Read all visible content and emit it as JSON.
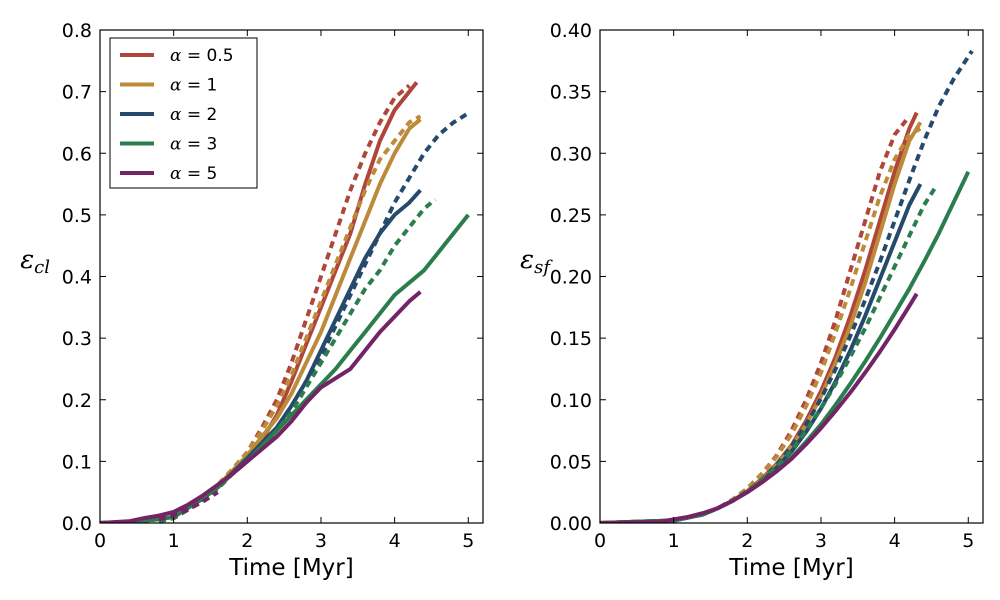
{
  "chart_data": [
    {
      "type": "line",
      "panel": "left",
      "title": "",
      "xlabel": "Time [Myr]",
      "ylabel": "εcl",
      "ylabel_symbol": "ε",
      "ylabel_sub": "cl",
      "xlim": [
        0,
        5.2
      ],
      "ylim": [
        0,
        0.8
      ],
      "xticks": [
        0,
        1,
        2,
        3,
        4,
        5
      ],
      "yticks": [
        0.0,
        0.1,
        0.2,
        0.3,
        0.4,
        0.5,
        0.6,
        0.7,
        0.8
      ],
      "ytick_labels": [
        "0.0",
        "0.1",
        "0.2",
        "0.3",
        "0.4",
        "0.5",
        "0.6",
        "0.7",
        "0.8"
      ],
      "grid": false,
      "legend": {
        "placement": "top-left",
        "entries": [
          {
            "symbol": "α",
            "text": " = 0.5",
            "color": "#b0453a"
          },
          {
            "symbol": "α",
            "text": " = 1",
            "color": "#bd8a3a"
          },
          {
            "symbol": "α",
            "text": " = 2",
            "color": "#264a6b"
          },
          {
            "symbol": "α",
            "text": " = 3",
            "color": "#2a7d4d"
          },
          {
            "symbol": "α",
            "text": " = 5",
            "color": "#732366"
          }
        ]
      },
      "series": [
        {
          "alpha": 0.5,
          "color": "#b0453a",
          "style": "solid",
          "x": [
            0,
            0.4,
            0.6,
            0.8,
            1.0,
            1.2,
            1.4,
            1.6,
            1.8,
            2.0,
            2.2,
            2.4,
            2.6,
            2.8,
            3.0,
            3.2,
            3.4,
            3.6,
            3.8,
            4.0,
            4.3
          ],
          "y": [
            0,
            0.002,
            0.004,
            0.006,
            0.01,
            0.025,
            0.04,
            0.06,
            0.08,
            0.105,
            0.135,
            0.175,
            0.23,
            0.29,
            0.35,
            0.41,
            0.47,
            0.55,
            0.62,
            0.67,
            0.715
          ]
        },
        {
          "alpha": 0.5,
          "color": "#b0453a",
          "style": "dashed",
          "x": [
            0.8,
            1.0,
            1.2,
            1.4,
            1.6,
            1.8,
            2.0,
            2.2,
            2.4,
            2.6,
            2.8,
            3.0,
            3.2,
            3.4,
            3.6,
            3.8,
            4.0,
            4.2
          ],
          "y": [
            0.003,
            0.008,
            0.022,
            0.04,
            0.06,
            0.085,
            0.115,
            0.155,
            0.2,
            0.26,
            0.33,
            0.4,
            0.47,
            0.54,
            0.6,
            0.65,
            0.69,
            0.71
          ]
        },
        {
          "alpha": 1,
          "color": "#bd8a3a",
          "style": "solid",
          "x": [
            0,
            0.4,
            0.6,
            0.8,
            1.0,
            1.2,
            1.4,
            1.6,
            1.8,
            2.0,
            2.2,
            2.4,
            2.6,
            2.8,
            3.0,
            3.2,
            3.4,
            3.6,
            3.8,
            4.0,
            4.2,
            4.35
          ],
          "y": [
            0,
            0.002,
            0.004,
            0.006,
            0.01,
            0.025,
            0.04,
            0.06,
            0.085,
            0.11,
            0.14,
            0.17,
            0.21,
            0.26,
            0.31,
            0.37,
            0.43,
            0.49,
            0.55,
            0.6,
            0.64,
            0.655
          ]
        },
        {
          "alpha": 1,
          "color": "#bd8a3a",
          "style": "dashed",
          "x": [
            0.8,
            1.0,
            1.2,
            1.4,
            1.6,
            1.8,
            2.0,
            2.2,
            2.4,
            2.6,
            2.8,
            3.0,
            3.2,
            3.4,
            3.6,
            3.8,
            4.0,
            4.2,
            4.35
          ],
          "y": [
            0.003,
            0.008,
            0.022,
            0.04,
            0.062,
            0.088,
            0.115,
            0.15,
            0.19,
            0.24,
            0.3,
            0.36,
            0.42,
            0.48,
            0.54,
            0.59,
            0.62,
            0.65,
            0.66
          ]
        },
        {
          "alpha": 2,
          "color": "#264a6b",
          "style": "solid",
          "x": [
            0,
            0.4,
            0.6,
            0.8,
            1.0,
            1.2,
            1.4,
            1.6,
            1.8,
            2.0,
            2.2,
            2.4,
            2.6,
            2.8,
            3.0,
            3.2,
            3.4,
            3.6,
            3.8,
            4.0,
            4.2,
            4.35
          ],
          "y": [
            0,
            0.002,
            0.004,
            0.006,
            0.01,
            0.025,
            0.04,
            0.058,
            0.082,
            0.105,
            0.13,
            0.155,
            0.19,
            0.23,
            0.28,
            0.33,
            0.38,
            0.43,
            0.47,
            0.5,
            0.52,
            0.54
          ]
        },
        {
          "alpha": 2,
          "color": "#264a6b",
          "style": "dashed",
          "x": [
            0.8,
            1.0,
            1.2,
            1.4,
            1.6,
            1.8,
            2.0,
            2.2,
            2.4,
            2.6,
            2.8,
            3.0,
            3.2,
            3.4,
            3.6,
            3.8,
            4.0,
            4.2,
            4.4,
            4.6,
            4.8,
            5.0
          ],
          "y": [
            0.003,
            0.008,
            0.022,
            0.038,
            0.056,
            0.08,
            0.1,
            0.125,
            0.155,
            0.19,
            0.23,
            0.27,
            0.32,
            0.37,
            0.42,
            0.47,
            0.52,
            0.56,
            0.6,
            0.63,
            0.65,
            0.665
          ]
        },
        {
          "alpha": 3,
          "color": "#2a7d4d",
          "style": "solid",
          "x": [
            0,
            0.4,
            0.6,
            0.8,
            1.0,
            1.2,
            1.4,
            1.6,
            1.8,
            2.0,
            2.2,
            2.4,
            2.6,
            2.8,
            3.0,
            3.2,
            3.4,
            3.6,
            3.8,
            4.0,
            4.2,
            4.4,
            4.6,
            4.8,
            5.0
          ],
          "y": [
            0,
            0.002,
            0.004,
            0.006,
            0.01,
            0.025,
            0.04,
            0.058,
            0.08,
            0.1,
            0.125,
            0.15,
            0.175,
            0.2,
            0.225,
            0.25,
            0.28,
            0.31,
            0.34,
            0.37,
            0.39,
            0.41,
            0.44,
            0.47,
            0.5
          ]
        },
        {
          "alpha": 3,
          "color": "#2a7d4d",
          "style": "dashed",
          "x": [
            0.8,
            1.0,
            1.2,
            1.4,
            1.6,
            1.8,
            2.0,
            2.2,
            2.4,
            2.6,
            2.8,
            3.0,
            3.2,
            3.4,
            3.6,
            3.8,
            4.0,
            4.2,
            4.4,
            4.55
          ],
          "y": [
            0.003,
            0.008,
            0.022,
            0.038,
            0.056,
            0.08,
            0.1,
            0.125,
            0.15,
            0.18,
            0.22,
            0.26,
            0.3,
            0.34,
            0.38,
            0.41,
            0.45,
            0.48,
            0.51,
            0.525
          ]
        },
        {
          "alpha": 5,
          "color": "#732366",
          "style": "solid",
          "x": [
            0,
            0.4,
            0.6,
            0.8,
            1.0,
            1.2,
            1.4,
            1.6,
            1.8,
            2.0,
            2.2,
            2.4,
            2.6,
            2.8,
            3.0,
            3.2,
            3.4,
            3.6,
            3.8,
            4.0,
            4.2,
            4.35
          ],
          "y": [
            0,
            0.003,
            0.008,
            0.012,
            0.018,
            0.03,
            0.045,
            0.062,
            0.08,
            0.1,
            0.12,
            0.14,
            0.165,
            0.195,
            0.22,
            0.235,
            0.25,
            0.28,
            0.31,
            0.335,
            0.36,
            0.375
          ]
        },
        {
          "alpha": 5,
          "color": "#732366",
          "style": "dashed",
          "x": [
            0.8,
            1.0,
            1.2,
            1.4,
            1.6
          ],
          "y": [
            0.006,
            0.012,
            0.022,
            0.035,
            0.05
          ]
        }
      ]
    },
    {
      "type": "line",
      "panel": "right",
      "title": "",
      "xlabel": "Time [Myr]",
      "ylabel": "εsf",
      "ylabel_symbol": "ε",
      "ylabel_sub": "sf",
      "xlim": [
        0,
        5.2
      ],
      "ylim": [
        0,
        0.4
      ],
      "xticks": [
        0,
        1,
        2,
        3,
        4,
        5
      ],
      "yticks": [
        0.0,
        0.05,
        0.1,
        0.15,
        0.2,
        0.25,
        0.3,
        0.35,
        0.4
      ],
      "ytick_labels": [
        "0.00",
        "0.05",
        "0.10",
        "0.15",
        "0.20",
        "0.25",
        "0.30",
        "0.35",
        "0.40"
      ],
      "grid": false,
      "series": [
        {
          "alpha": 0.5,
          "color": "#b0453a",
          "style": "solid",
          "x": [
            0,
            1.0,
            1.4,
            1.6,
            1.8,
            2.0,
            2.2,
            2.4,
            2.6,
            2.8,
            3.0,
            3.2,
            3.4,
            3.6,
            3.8,
            4.0,
            4.2,
            4.3
          ],
          "y": [
            0,
            0.002,
            0.007,
            0.012,
            0.018,
            0.026,
            0.036,
            0.048,
            0.063,
            0.083,
            0.107,
            0.135,
            0.168,
            0.205,
            0.245,
            0.285,
            0.32,
            0.333
          ]
        },
        {
          "alpha": 0.5,
          "color": "#b0453a",
          "style": "dashed",
          "x": [
            1.0,
            1.4,
            1.6,
            1.8,
            2.0,
            2.2,
            2.4,
            2.6,
            2.8,
            3.0,
            3.2,
            3.4,
            3.6,
            3.8,
            4.0,
            4.2
          ],
          "y": [
            0.002,
            0.007,
            0.012,
            0.019,
            0.028,
            0.04,
            0.055,
            0.075,
            0.1,
            0.13,
            0.165,
            0.205,
            0.245,
            0.285,
            0.315,
            0.33
          ]
        },
        {
          "alpha": 1,
          "color": "#bd8a3a",
          "style": "solid",
          "x": [
            0,
            1.0,
            1.4,
            1.6,
            1.8,
            2.0,
            2.2,
            2.4,
            2.6,
            2.8,
            3.0,
            3.2,
            3.4,
            3.6,
            3.8,
            4.0,
            4.2,
            4.35
          ],
          "y": [
            0,
            0.002,
            0.007,
            0.012,
            0.018,
            0.026,
            0.035,
            0.047,
            0.062,
            0.08,
            0.103,
            0.13,
            0.16,
            0.195,
            0.235,
            0.275,
            0.31,
            0.325
          ]
        },
        {
          "alpha": 1,
          "color": "#bd8a3a",
          "style": "dashed",
          "x": [
            1.0,
            1.4,
            1.6,
            1.8,
            2.0,
            2.2,
            2.4,
            2.6,
            2.8,
            3.0,
            3.2,
            3.4,
            3.6,
            3.8,
            4.0,
            4.2,
            4.35
          ],
          "y": [
            0.002,
            0.007,
            0.012,
            0.019,
            0.028,
            0.04,
            0.054,
            0.072,
            0.095,
            0.122,
            0.155,
            0.19,
            0.228,
            0.265,
            0.295,
            0.315,
            0.32
          ]
        },
        {
          "alpha": 2,
          "color": "#264a6b",
          "style": "solid",
          "x": [
            0,
            1.0,
            1.4,
            1.6,
            1.8,
            2.0,
            2.2,
            2.4,
            2.6,
            2.8,
            3.0,
            3.2,
            3.4,
            3.6,
            3.8,
            4.0,
            4.2,
            4.35
          ],
          "y": [
            0,
            0.002,
            0.007,
            0.012,
            0.018,
            0.025,
            0.034,
            0.045,
            0.058,
            0.074,
            0.093,
            0.115,
            0.14,
            0.168,
            0.198,
            0.228,
            0.258,
            0.275
          ]
        },
        {
          "alpha": 2,
          "color": "#264a6b",
          "style": "dashed",
          "x": [
            1.0,
            1.4,
            1.6,
            1.8,
            2.0,
            2.2,
            2.4,
            2.6,
            2.8,
            3.0,
            3.2,
            3.4,
            3.6,
            3.8,
            4.0,
            4.2,
            4.4,
            4.6,
            4.8,
            5.05
          ],
          "y": [
            0.002,
            0.007,
            0.012,
            0.018,
            0.026,
            0.035,
            0.047,
            0.062,
            0.08,
            0.101,
            0.125,
            0.152,
            0.181,
            0.212,
            0.245,
            0.278,
            0.31,
            0.338,
            0.36,
            0.383
          ]
        },
        {
          "alpha": 3,
          "color": "#2a7d4d",
          "style": "solid",
          "x": [
            0,
            1.0,
            1.4,
            1.6,
            1.8,
            2.0,
            2.2,
            2.4,
            2.6,
            2.8,
            3.0,
            3.2,
            3.4,
            3.6,
            3.8,
            4.0,
            4.2,
            4.4,
            4.6,
            4.8,
            5.0
          ],
          "y": [
            0,
            0.002,
            0.007,
            0.012,
            0.018,
            0.025,
            0.033,
            0.042,
            0.053,
            0.066,
            0.08,
            0.096,
            0.113,
            0.131,
            0.15,
            0.17,
            0.19,
            0.212,
            0.235,
            0.26,
            0.285
          ]
        },
        {
          "alpha": 3,
          "color": "#2a7d4d",
          "style": "dashed",
          "x": [
            1.0,
            1.4,
            1.6,
            1.8,
            2.0,
            2.2,
            2.4,
            2.6,
            2.8,
            3.0,
            3.2,
            3.4,
            3.6,
            3.8,
            4.0,
            4.2,
            4.4,
            4.55
          ],
          "y": [
            0.002,
            0.007,
            0.012,
            0.018,
            0.026,
            0.035,
            0.046,
            0.059,
            0.075,
            0.093,
            0.113,
            0.135,
            0.158,
            0.183,
            0.208,
            0.233,
            0.258,
            0.272
          ]
        },
        {
          "alpha": 5,
          "color": "#732366",
          "style": "solid",
          "x": [
            0,
            0.8,
            1.0,
            1.2,
            1.4,
            1.6,
            1.8,
            2.0,
            2.2,
            2.4,
            2.6,
            2.8,
            3.0,
            3.2,
            3.4,
            3.6,
            3.8,
            4.0,
            4.2,
            4.3
          ],
          "y": [
            0,
            0.001,
            0.003,
            0.005,
            0.008,
            0.012,
            0.018,
            0.025,
            0.033,
            0.042,
            0.052,
            0.064,
            0.077,
            0.091,
            0.106,
            0.122,
            0.139,
            0.157,
            0.176,
            0.186
          ]
        }
      ]
    }
  ]
}
